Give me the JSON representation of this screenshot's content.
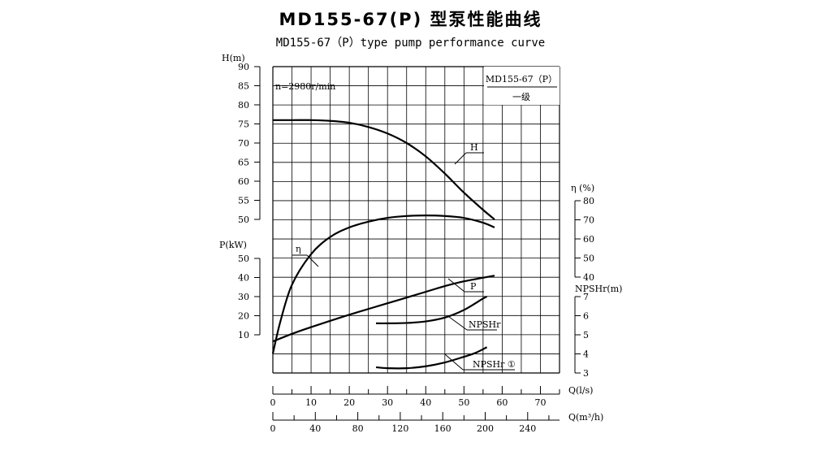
{
  "title": "MD155-67(P) 型泵性能曲线",
  "subtitle": "MD155-67（P）type pump performance curve",
  "chart_data": {
    "type": "line",
    "speed_label": "n=2980r/min",
    "model_box": {
      "model": "MD155-67（P）",
      "stage": "一级"
    },
    "axes": {
      "head": {
        "label": "H(m)",
        "ticks": [
          50,
          55,
          60,
          65,
          70,
          75,
          80,
          85,
          90
        ],
        "range": [
          50,
          90
        ]
      },
      "power": {
        "label": "P(kW)",
        "ticks": [
          10,
          20,
          30,
          40,
          50
        ],
        "range": [
          0,
          55
        ]
      },
      "efficiency": {
        "label": "η (%)",
        "ticks": [
          40,
          50,
          60,
          70,
          80
        ],
        "range": [
          40,
          80
        ]
      },
      "npsh": {
        "label": "NPSHr(m)",
        "ticks": [
          3,
          4,
          5,
          6,
          7
        ],
        "range": [
          3,
          7
        ]
      },
      "flow_ls": {
        "label": "Q(l/s)",
        "ticks": [
          0,
          10,
          20,
          30,
          40,
          50,
          60,
          70
        ],
        "range": [
          0,
          75
        ]
      },
      "flow_m3h": {
        "label": "Q(m³/h)",
        "ticks": [
          0,
          40,
          80,
          120,
          160,
          200,
          240
        ],
        "range": [
          0,
          270
        ]
      }
    },
    "series": [
      {
        "name": "H",
        "unit": "m",
        "x": [
          0,
          5,
          10,
          15,
          20,
          25,
          30,
          35,
          40,
          45,
          50,
          55,
          58
        ],
        "y": [
          76,
          76,
          76,
          75.8,
          75.3,
          74.2,
          72.5,
          70,
          66.5,
          62,
          57,
          52.5,
          50
        ]
      },
      {
        "name": "η",
        "unit": "%",
        "x": [
          0,
          2,
          5,
          10,
          15,
          20,
          25,
          30,
          35,
          40,
          45,
          50,
          55,
          58
        ],
        "y": [
          0,
          17,
          36,
          52,
          61,
          66,
          69,
          71,
          72,
          72.3,
          72,
          71,
          68.5,
          66
        ]
      },
      {
        "name": "P",
        "unit": "kW",
        "x": [
          0,
          5,
          10,
          20,
          30,
          40,
          45,
          50,
          58
        ],
        "y": [
          6.5,
          10.5,
          14,
          20.5,
          26.5,
          32.5,
          35.5,
          38,
          41
        ]
      },
      {
        "name": "NPSHr",
        "unit": "m",
        "x": [
          27,
          30,
          35,
          40,
          45,
          50,
          55,
          56
        ],
        "y": [
          5.6,
          5.6,
          5.62,
          5.7,
          5.9,
          6.3,
          6.9,
          7.0
        ]
      },
      {
        "name": "NPSHr ①",
        "unit": "m",
        "x": [
          27,
          30,
          35,
          40,
          45,
          50,
          53,
          56
        ],
        "y": [
          3.3,
          3.25,
          3.25,
          3.35,
          3.55,
          3.85,
          4.05,
          4.35
        ]
      }
    ]
  }
}
